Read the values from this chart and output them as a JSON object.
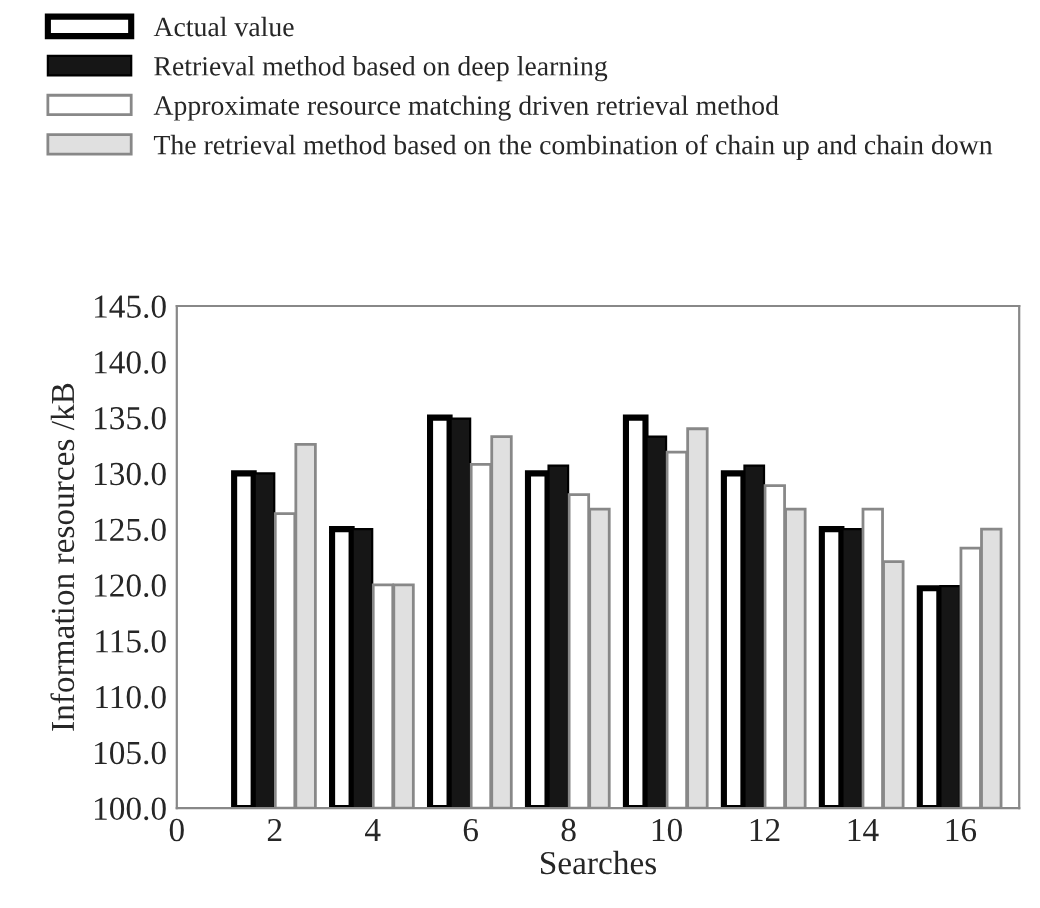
{
  "chart_data": {
    "type": "bar",
    "xlabel": "Searches",
    "ylabel": "Information resources /kB",
    "x": [
      2,
      4,
      6,
      8,
      10,
      12,
      14,
      16
    ],
    "series": [
      {
        "name": "Actual value",
        "color": "#ffffff",
        "values": [
          130.0,
          125.0,
          135.0,
          130.0,
          135.0,
          130.0,
          125.0,
          119.7
        ]
      },
      {
        "name": "Retrieval method based on deep learning",
        "color": "#161616",
        "values": [
          130.0,
          125.0,
          134.9,
          130.7,
          133.3,
          130.7,
          125.0,
          119.9
        ]
      },
      {
        "name": "Approximate resource matching driven retrieval method",
        "color": "#ffffff",
        "values": [
          126.4,
          120.0,
          130.8,
          128.1,
          131.9,
          128.9,
          126.8,
          123.3
        ]
      },
      {
        "name": "The retrieval method based on the combination of chain up and chain down",
        "color": "#e0e0e0",
        "values": [
          132.6,
          120.0,
          133.3,
          126.8,
          134.0,
          126.8,
          122.1,
          125.0
        ]
      }
    ],
    "xlim": [
      0,
      17.2
    ],
    "xticks": [
      0,
      2,
      4,
      6,
      8,
      10,
      12,
      14,
      16
    ],
    "ylim": [
      100,
      145
    ],
    "yticks": [
      {
        "value": 100,
        "label": "100.0"
      },
      {
        "value": 105,
        "label": "105.0"
      },
      {
        "value": 110,
        "label": "110.0"
      },
      {
        "value": 115,
        "label": "115.0"
      },
      {
        "value": 120,
        "label": "120.0"
      },
      {
        "value": 125,
        "label": "125.0"
      },
      {
        "value": 130,
        "label": "130.0"
      },
      {
        "value": 135,
        "label": "135.0"
      },
      {
        "value": 140,
        "label": "140.0"
      },
      {
        "value": 145,
        "label": "145.0"
      }
    ],
    "legend": "top",
    "grid": false
  }
}
